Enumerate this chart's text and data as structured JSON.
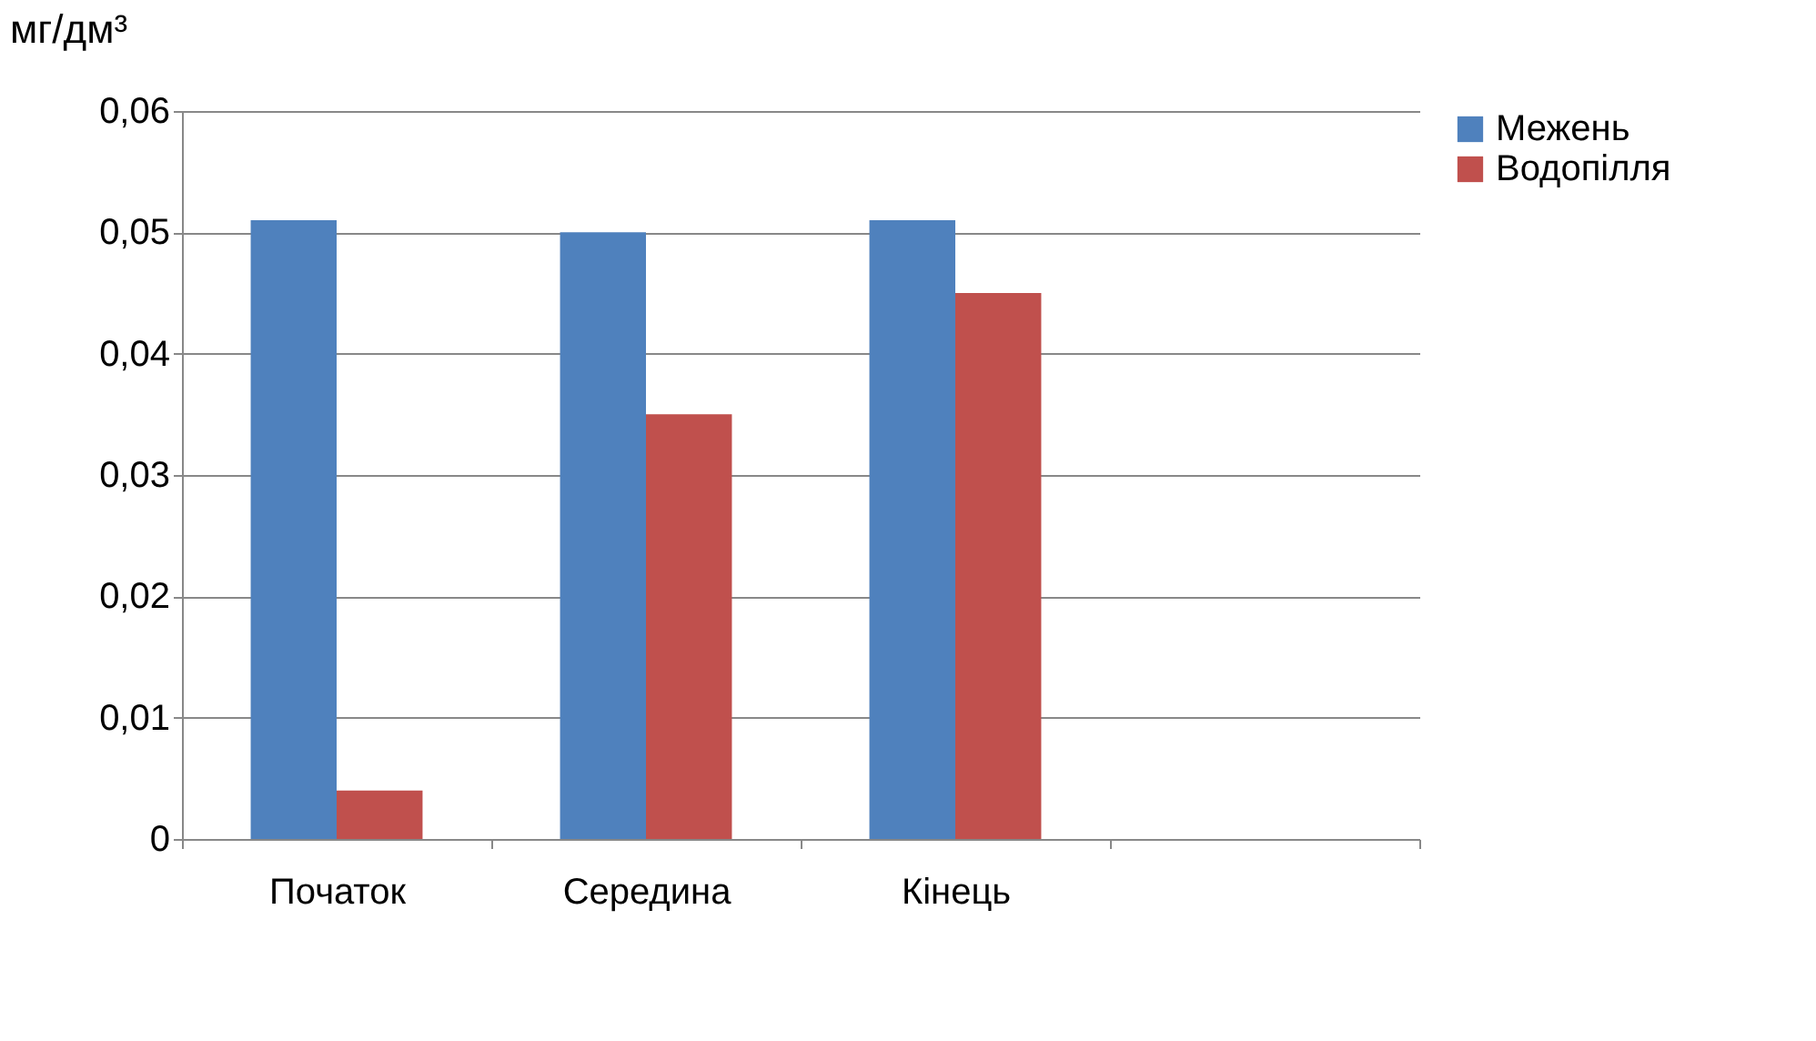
{
  "chart_data": {
    "type": "bar",
    "ylabel": "мг/дм³",
    "categories": [
      "Початок",
      "Середина",
      "Кінець",
      null
    ],
    "series": [
      {
        "name": "Межень",
        "color": "#4f81bd",
        "values": [
          0.051,
          0.05,
          0.051,
          null
        ]
      },
      {
        "name": "Водопілля",
        "color": "#c0504d",
        "values": [
          0.004,
          0.035,
          0.045,
          null
        ]
      }
    ],
    "ylim": [
      0,
      0.06
    ],
    "yticks": [
      {
        "value": 0,
        "label": "0"
      },
      {
        "value": 0.01,
        "label": "0,01"
      },
      {
        "value": 0.02,
        "label": "0,02"
      },
      {
        "value": 0.03,
        "label": "0,03"
      },
      {
        "value": 0.04,
        "label": "0,04"
      },
      {
        "value": 0.05,
        "label": "0,05"
      },
      {
        "value": 0.06,
        "label": "0,06"
      }
    ],
    "grid": "y",
    "legend": "right"
  }
}
